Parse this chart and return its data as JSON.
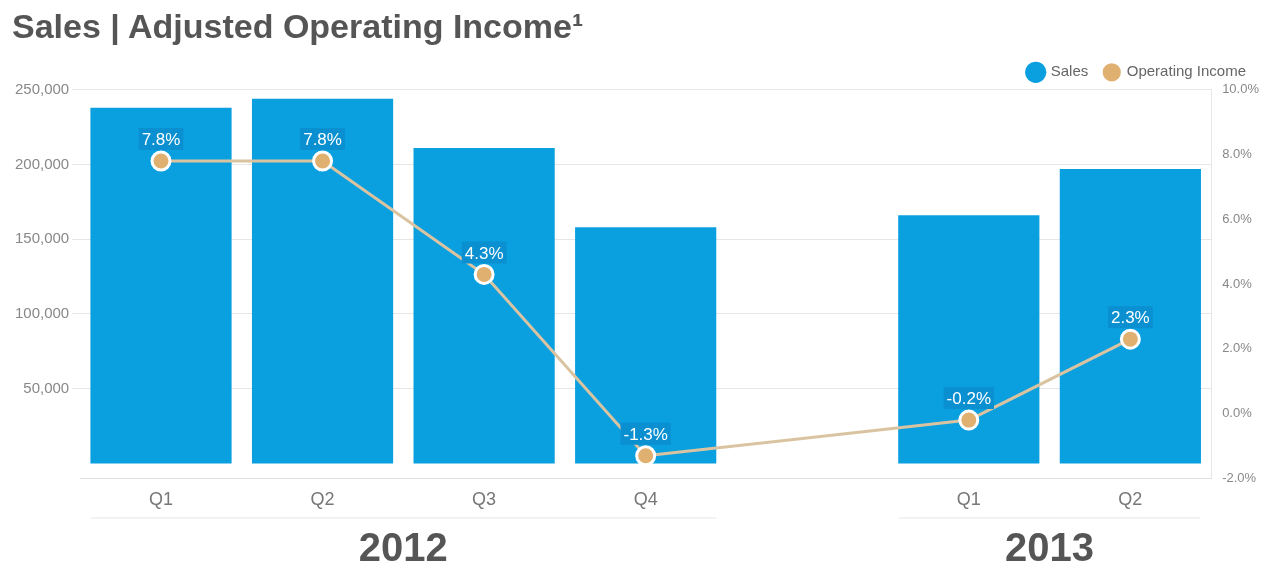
{
  "chart_data": {
    "type": "bar",
    "title": "Sales | Adjusted Operating Income¹",
    "categories": [
      "Q1",
      "Q2",
      "Q3",
      "Q4",
      null,
      "Q1",
      "Q2"
    ],
    "series": [
      {
        "name": "Sales",
        "color": "#0aa0e0",
        "values": [
          238000,
          244000,
          211000,
          158000,
          null,
          166000,
          197000
        ]
      },
      {
        "name": "Operating Income",
        "type": "line",
        "axis": "y2",
        "color": "#d9c3a0",
        "marker": "circle",
        "values": [
          7.8,
          7.8,
          4.3,
          -1.3,
          null,
          -0.2,
          2.3
        ],
        "value_labels": [
          "7.8%",
          "7.8%",
          "4.3%",
          "-1.3%",
          null,
          "-0.2%",
          "2.3%"
        ]
      }
    ],
    "ylim": [
      -10000,
      250000
    ],
    "yticks": [
      {
        "value": 50000,
        "label": "50,000"
      },
      {
        "value": 100000,
        "label": "100,000"
      },
      {
        "value": 150000,
        "label": "150,000"
      },
      {
        "value": 200000,
        "label": "200,000"
      },
      {
        "value": 250000,
        "label": "250,000"
      }
    ],
    "y2lim": [
      -2,
      10
    ],
    "y2ticks": [
      {
        "value": -2,
        "label": "-2.0%"
      },
      {
        "value": 0,
        "label": "0.0%"
      },
      {
        "value": 2,
        "label": "2.0%"
      },
      {
        "value": 4,
        "label": "4.0%"
      },
      {
        "value": 6,
        "label": "6.0%"
      },
      {
        "value": 8,
        "label": "8.0%"
      },
      {
        "value": 10,
        "label": "10.0%"
      }
    ],
    "annotations": [
      "2012",
      "2013"
    ],
    "grid": "y",
    "legend": "top right"
  }
}
